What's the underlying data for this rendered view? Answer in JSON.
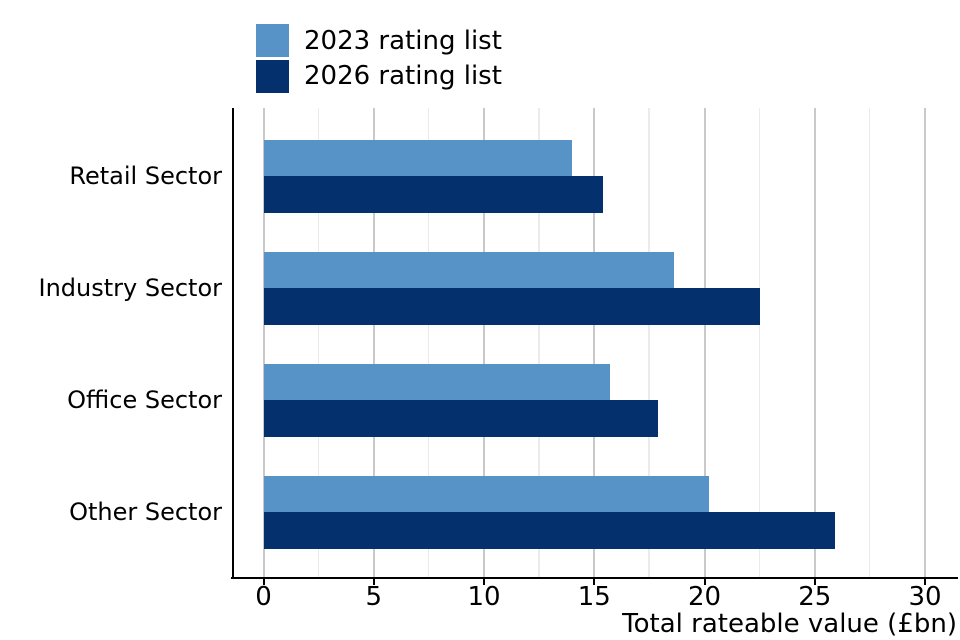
{
  "chart_data": {
    "type": "bar",
    "orientation": "horizontal",
    "title": "",
    "categories": [
      "Retail Sector",
      "Industry Sector",
      "Office Sector",
      "Other Sector"
    ],
    "series": [
      {
        "name": "2023 rating list",
        "color": "#5893c8",
        "values": [
          14.0,
          18.6,
          15.7,
          20.2
        ]
      },
      {
        "name": "2026 rating list",
        "color": "#04306e",
        "values": [
          15.4,
          22.5,
          17.9,
          25.9
        ]
      }
    ],
    "xlabel": "Total rateable value (£bn)",
    "ylabel": "",
    "xlim": [
      0,
      30
    ],
    "xticks": [
      0,
      5,
      10,
      15,
      20,
      25,
      30
    ],
    "minor_grid_step": 2.5,
    "grid": true,
    "legend_position": "top-left",
    "background": "#ffffff",
    "major_grid_color": "#c9c9c9",
    "minor_grid_color": "#ebebeb",
    "axis_color": "#000000"
  }
}
